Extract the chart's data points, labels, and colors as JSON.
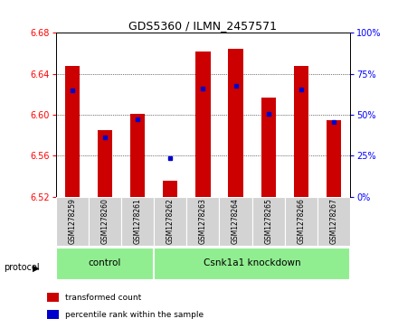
{
  "title": "GDS5360 / ILMN_2457571",
  "samples": [
    "GSM1278259",
    "GSM1278260",
    "GSM1278261",
    "GSM1278262",
    "GSM1278263",
    "GSM1278264",
    "GSM1278265",
    "GSM1278266",
    "GSM1278267"
  ],
  "bar_values": [
    6.648,
    6.585,
    6.601,
    6.536,
    6.662,
    6.664,
    6.617,
    6.648,
    6.595
  ],
  "bar_base": 6.52,
  "blue_dot_y": [
    6.624,
    6.578,
    6.596,
    6.558,
    6.626,
    6.628,
    6.601,
    6.625,
    6.593
  ],
  "ylim": [
    6.52,
    6.68
  ],
  "yticks": [
    6.52,
    6.56,
    6.6,
    6.64,
    6.68
  ],
  "right_yticks": [
    0,
    25,
    50,
    75,
    100
  ],
  "bar_color": "#cc0000",
  "dot_color": "#0000cc",
  "title_fontsize": 9,
  "protocol_groups": [
    {
      "label": "control",
      "start": 0,
      "end": 3
    },
    {
      "label": "Csnk1a1 knockdown",
      "start": 3,
      "end": 9
    }
  ],
  "protocol_label": "protocol",
  "legend_items": [
    {
      "label": "transformed count",
      "color": "#cc0000"
    },
    {
      "label": "percentile rank within the sample",
      "color": "#0000cc"
    }
  ],
  "plot_bg": "#ffffff",
  "group_bg": "#90ee90",
  "tick_label_bg": "#d3d3d3"
}
